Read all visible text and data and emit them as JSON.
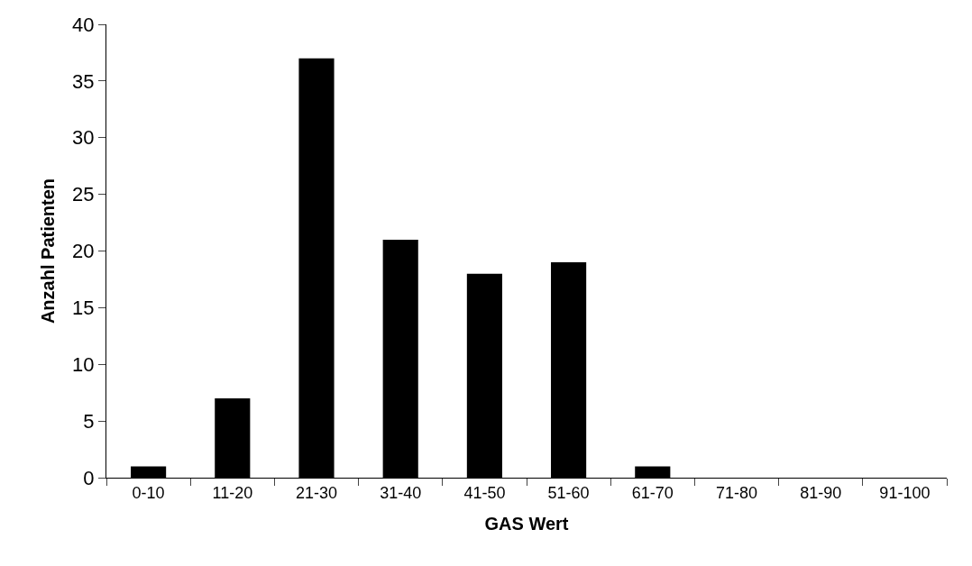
{
  "chart_data": {
    "type": "bar",
    "xlabel": "GAS Wert",
    "ylabel": "Anzahl Patienten",
    "categories": [
      "0-10",
      "11-20",
      "21-30",
      "31-40",
      "41-50",
      "51-60",
      "61-70",
      "71-80",
      "81-90",
      "91-100"
    ],
    "values": [
      1,
      7,
      37,
      21,
      18,
      19,
      1,
      0,
      0,
      0
    ],
    "color": "#000000",
    "ylim": [
      0,
      40
    ],
    "yticks": [
      0,
      5,
      10,
      15,
      20,
      25,
      30,
      35,
      40
    ]
  }
}
